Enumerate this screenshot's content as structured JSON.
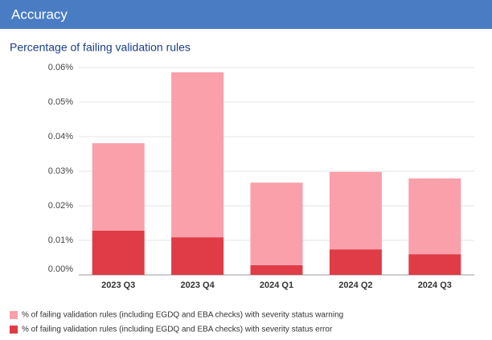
{
  "header": {
    "title": "Accuracy"
  },
  "chart_data": {
    "type": "stacked_bar",
    "title": "Percentage of failing validation rules",
    "categories": [
      "2023 Q3",
      "2023 Q4",
      "2024 Q1",
      "2024 Q2",
      "2024 Q3"
    ],
    "series": [
      {
        "name": "% of failing validation rules (including EGDQ and EBA checks) with severity status warning",
        "color": "#f9a0aa",
        "values": [
          0.0253,
          0.0477,
          0.0239,
          0.0224,
          0.0219
        ]
      },
      {
        "name": "% of failing validation rules (including EGDQ and EBA checks) with severity status error",
        "color": "#e03c48",
        "values": [
          0.0128,
          0.0109,
          0.0028,
          0.0074,
          0.006
        ]
      }
    ],
    "ylim": [
      0,
      0.06
    ],
    "yticks": [
      {
        "value": 0,
        "label": "0.00%"
      },
      {
        "value": 0.01,
        "label": "0.01%"
      },
      {
        "value": 0.02,
        "label": "0.02%"
      },
      {
        "value": 0.03,
        "label": "0.03%"
      },
      {
        "value": 0.04,
        "label": "0.04%"
      },
      {
        "value": 0.05,
        "label": "0.05%"
      },
      {
        "value": 0.06,
        "label": "0.06%"
      }
    ],
    "grid": true,
    "legend": "bottom"
  }
}
